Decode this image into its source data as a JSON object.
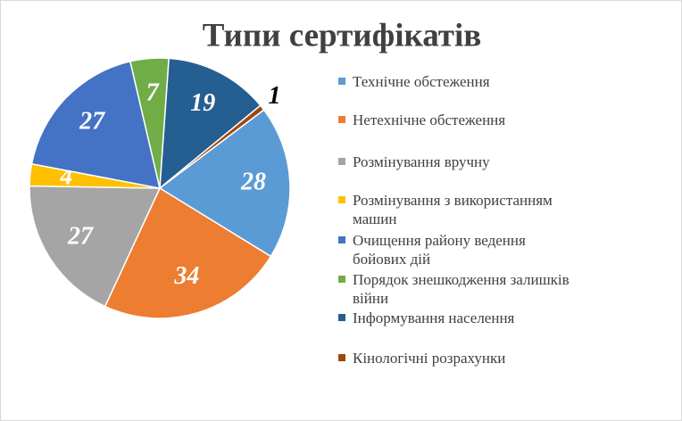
{
  "chart_data": {
    "type": "pie",
    "title": "Типи сертифікатів",
    "categories": [
      "Технічне обстеження",
      "Нетехнічне обстеження",
      "Розмінування вручну",
      "Розмінування з використанням машин",
      "Очищення району ведення бойових дій",
      "Порядок знешкодження залишків війни",
      "Інформування населення",
      "Кінологічні розрахунки"
    ],
    "values": [
      28,
      34,
      27,
      4,
      27,
      7,
      19,
      1
    ],
    "colors": [
      "#5b9bd5",
      "#ed7d31",
      "#a5a5a5",
      "#ffc000",
      "#4472c4",
      "#70ad47",
      "#255e91",
      "#9e480e"
    ],
    "legend": "right"
  }
}
